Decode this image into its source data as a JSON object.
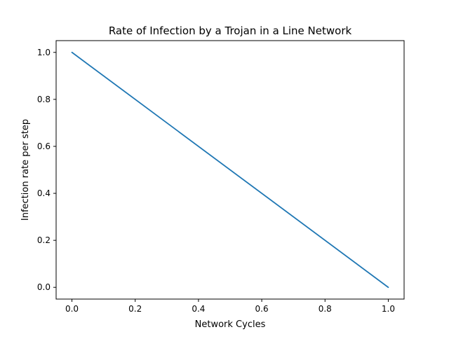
{
  "chart_data": {
    "type": "line",
    "title": "Rate of Infection by a Trojan in a Line Network",
    "xlabel": "Network Cycles",
    "ylabel": "Infection rate per step",
    "xlim": [
      -0.05,
      1.05
    ],
    "ylim": [
      -0.05,
      1.05
    ],
    "x_ticks": [
      "0.0",
      "0.2",
      "0.4",
      "0.6",
      "0.8",
      "1.0"
    ],
    "y_ticks": [
      "0.0",
      "0.2",
      "0.4",
      "0.6",
      "0.8",
      "1.0"
    ],
    "grid": false,
    "series": [
      {
        "color": "#1f77b4",
        "x": [
          0.0,
          1.0
        ],
        "y": [
          1.0,
          0.0
        ]
      }
    ]
  }
}
